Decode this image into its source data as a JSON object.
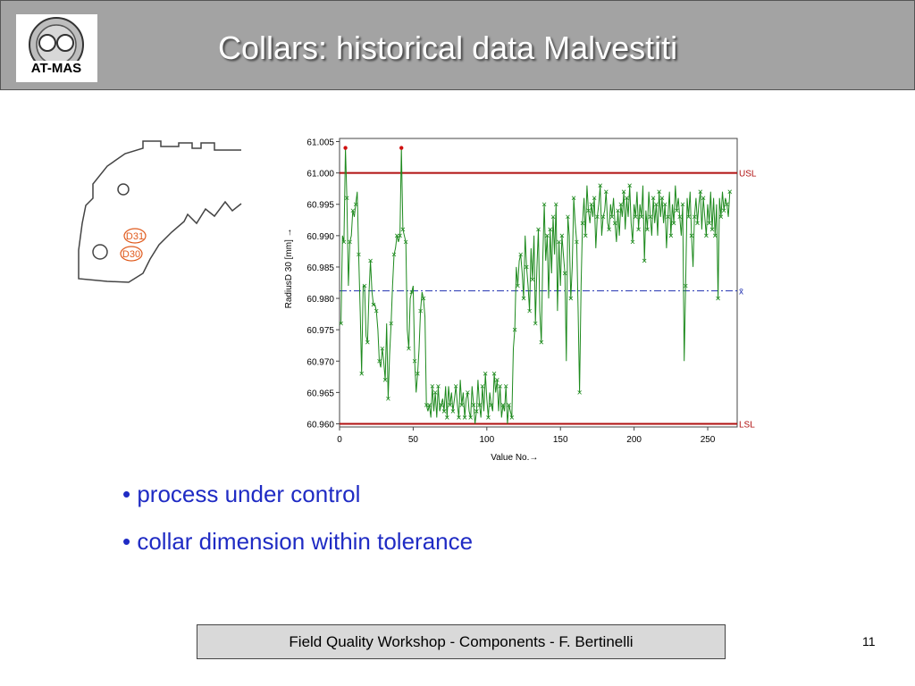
{
  "header": {
    "title": "Collars: historical data Malvestiti",
    "logo_text": "AT-MAS"
  },
  "drawing": {
    "labels": [
      "D31",
      "D30"
    ],
    "label_color": "#e05a1c"
  },
  "chart_data": {
    "type": "line",
    "title": "",
    "xlabel": "Value No.→",
    "ylabel": "RadiusD 30 [mm] →",
    "xlim": [
      0,
      270
    ],
    "ylim": [
      60.9595,
      61.0055
    ],
    "x_ticks": [
      0,
      50,
      100,
      150,
      200,
      250
    ],
    "y_ticks": [
      "61.005",
      "61.000",
      "60.995",
      "60.990",
      "60.985",
      "60.980",
      "60.975",
      "60.970",
      "60.965",
      "60.960"
    ],
    "y_tick_values": [
      61.005,
      61.0,
      60.995,
      60.99,
      60.985,
      60.98,
      60.975,
      60.97,
      60.965,
      60.96
    ],
    "limits": [
      {
        "label": "USL",
        "value": 61.0,
        "color": "#b01010"
      },
      {
        "label": "x̄",
        "value": 60.9812,
        "color": "#2030b0"
      },
      {
        "label": "LSL",
        "value": 60.96,
        "color": "#b01010"
      }
    ],
    "series_color": "#1e8a1e",
    "outlier_color": "#d01010",
    "values": [
      60.976,
      60.99,
      60.989,
      61.004,
      60.996,
      60.982,
      60.989,
      60.99,
      60.994,
      60.993,
      60.995,
      60.997,
      60.987,
      60.978,
      60.968,
      60.982,
      60.982,
      60.974,
      60.973,
      60.981,
      60.986,
      60.981,
      60.979,
      60.979,
      60.978,
      60.975,
      60.97,
      60.969,
      60.972,
      60.97,
      60.967,
      60.976,
      60.964,
      60.971,
      60.976,
      60.982,
      60.987,
      60.988,
      60.99,
      60.989,
      60.99,
      61.004,
      60.991,
      60.99,
      60.989,
      60.975,
      60.972,
      60.98,
      60.981,
      60.982,
      60.97,
      60.965,
      60.968,
      60.972,
      60.978,
      60.981,
      60.98,
      60.977,
      60.963,
      60.962,
      60.963,
      60.961,
      60.966,
      60.962,
      60.965,
      60.961,
      60.966,
      60.962,
      60.963,
      60.964,
      60.962,
      60.966,
      60.961,
      60.966,
      60.963,
      60.965,
      60.962,
      60.964,
      60.966,
      60.963,
      60.961,
      60.967,
      60.963,
      60.965,
      60.961,
      60.964,
      60.965,
      60.962,
      60.961,
      60.966,
      60.963,
      60.96,
      60.962,
      60.967,
      60.963,
      60.961,
      60.966,
      60.962,
      60.968,
      60.964,
      60.961,
      60.965,
      60.963,
      60.962,
      60.968,
      60.965,
      60.967,
      60.962,
      60.966,
      60.961,
      60.963,
      60.962,
      60.966,
      60.96,
      60.963,
      60.962,
      60.961,
      60.972,
      60.975,
      60.985,
      60.982,
      60.986,
      60.987,
      60.984,
      60.98,
      60.99,
      60.985,
      60.982,
      60.978,
      60.988,
      60.983,
      60.99,
      60.976,
      60.985,
      60.991,
      60.978,
      60.973,
      60.986,
      60.995,
      60.986,
      60.99,
      60.98,
      60.991,
      60.984,
      60.993,
      60.987,
      60.995,
      60.978,
      60.989,
      60.982,
      60.99,
      60.987,
      60.984,
      60.97,
      60.993,
      60.99,
      60.98,
      60.985,
      60.996,
      60.992,
      60.989,
      60.978,
      60.965,
      60.982,
      60.992,
      60.996,
      60.99,
      60.998,
      60.994,
      60.992,
      60.995,
      60.993,
      60.996,
      60.988,
      60.993,
      60.995,
      60.998,
      60.99,
      60.993,
      60.994,
      60.997,
      60.992,
      60.991,
      60.995,
      60.993,
      60.996,
      60.992,
      60.989,
      60.994,
      60.99,
      60.995,
      60.993,
      60.997,
      60.991,
      60.996,
      60.993,
      60.998,
      60.992,
      60.989,
      60.995,
      60.993,
      60.997,
      60.991,
      60.995,
      60.993,
      60.998,
      60.986,
      60.994,
      60.991,
      60.997,
      60.993,
      60.99,
      60.996,
      60.992,
      60.995,
      60.99,
      60.997,
      60.993,
      60.996,
      60.992,
      60.995,
      60.988,
      60.993,
      60.997,
      60.99,
      60.995,
      60.992,
      60.998,
      60.994,
      60.996,
      60.993,
      60.99,
      60.995,
      60.97,
      60.982,
      60.996,
      60.993,
      60.997,
      60.99,
      60.985,
      60.993,
      60.996,
      60.992,
      60.995,
      60.997,
      60.991,
      60.996,
      60.993,
      60.99,
      60.995,
      60.992,
      60.997,
      60.991,
      60.996,
      60.99,
      60.995,
      60.98,
      60.996,
      60.993,
      60.997,
      60.994,
      60.996,
      60.995,
      60.993,
      60.997
    ]
  },
  "bullets": [
    "• process under control",
    "• collar dimension within tolerance"
  ],
  "footer": {
    "text": "Field Quality Workshop -  Components - F. Bertinelli",
    "page_number": "11"
  }
}
